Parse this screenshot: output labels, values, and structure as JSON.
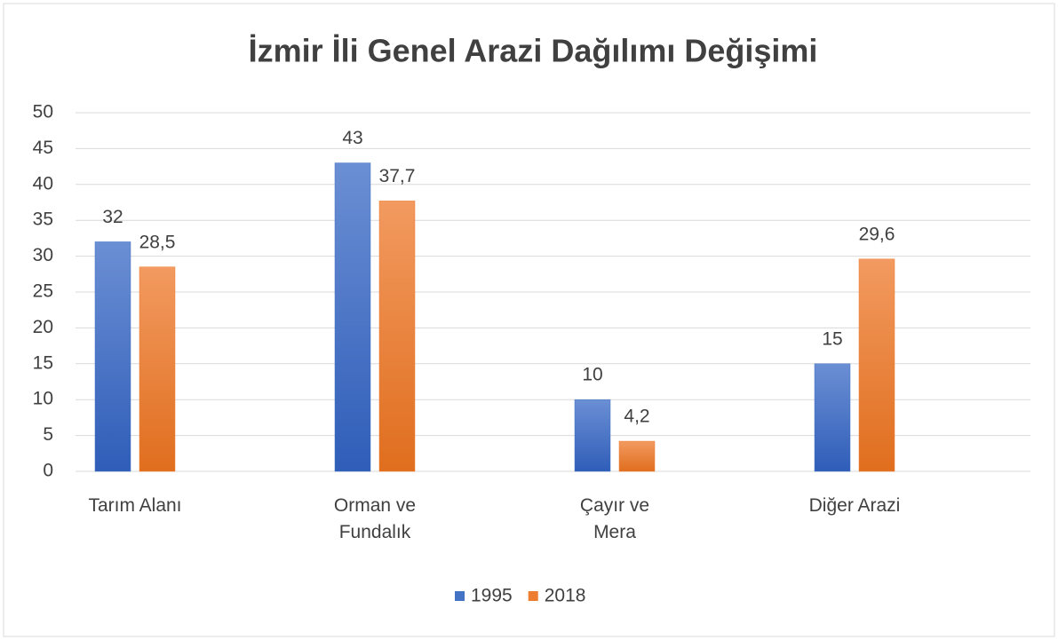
{
  "chart_data": {
    "type": "bar",
    "title": "İzmir İli Genel Arazi Dağılımı Değişimi",
    "categories": [
      "Tarım Alanı",
      "Orman ve Fundalık",
      "Çayır ve Mera",
      "Diğer Arazi"
    ],
    "series": [
      {
        "name": "1995",
        "color": "#4472c4",
        "values": [
          32,
          43,
          10,
          15
        ],
        "value_labels": [
          "32",
          "43",
          "10",
          "15"
        ]
      },
      {
        "name": "2018",
        "color": "#ed7d31",
        "values": [
          28.5,
          37.7,
          4.2,
          29.6
        ],
        "value_labels": [
          "28,5",
          "37,7",
          "4,2",
          "29,6"
        ]
      }
    ],
    "ylim": [
      0,
      50
    ],
    "yticks": [
      0,
      5,
      10,
      15,
      20,
      25,
      30,
      35,
      40,
      45,
      50
    ],
    "grid": true,
    "legend": "bottom"
  }
}
